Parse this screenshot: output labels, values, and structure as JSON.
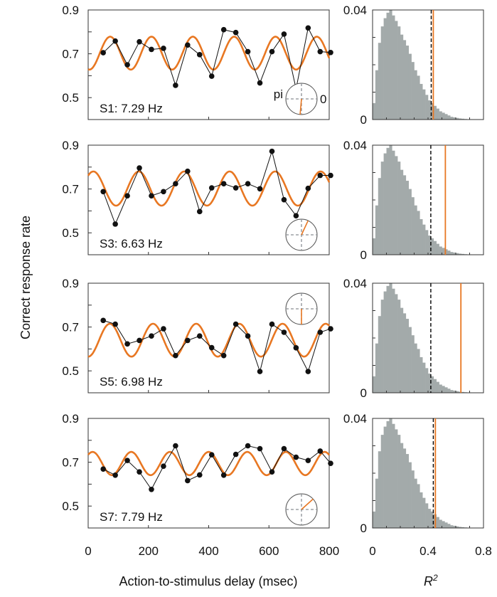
{
  "chart_data": [
    {
      "type": "line",
      "subject_label": "S1: 7.29 Hz",
      "freq_hz": 7.29,
      "x": [
        50,
        90,
        130,
        170,
        210,
        250,
        290,
        330,
        370,
        410,
        450,
        490,
        530,
        570,
        610,
        650,
        690,
        730,
        770,
        810
      ],
      "values": [
        0.705,
        0.758,
        0.65,
        0.755,
        0.72,
        0.725,
        0.556,
        0.74,
        0.696,
        0.598,
        0.81,
        0.797,
        0.71,
        0.567,
        0.71,
        0.79,
        0.54,
        0.818,
        0.71,
        0.706
      ],
      "fit": {
        "mean": 0.703,
        "amplitude": 0.075,
        "peak_ms": 73
      },
      "phase_deg": -95,
      "phase_labels": [
        "pi",
        "0"
      ],
      "r2_observed": 0.438,
      "r2_threshold": 0.423
    },
    {
      "type": "line",
      "subject_label": "S3: 6.63 Hz",
      "freq_hz": 6.63,
      "x": [
        50,
        90,
        130,
        170,
        210,
        250,
        290,
        330,
        370,
        410,
        450,
        490,
        530,
        570,
        610,
        650,
        690,
        730,
        770,
        810
      ],
      "values": [
        0.688,
        0.54,
        0.669,
        0.796,
        0.669,
        0.688,
        0.724,
        0.781,
        0.597,
        0.705,
        0.724,
        0.705,
        0.724,
        0.701,
        0.872,
        0.651,
        0.578,
        0.703,
        0.762,
        0.762
      ],
      "fit": {
        "mean": 0.702,
        "amplitude": 0.078,
        "peak_ms": 168
      },
      "phase_deg": 65,
      "phase_labels": [],
      "r2_observed": 0.525,
      "r2_threshold": 0.42
    },
    {
      "type": "line",
      "subject_label": "S5: 6.98 Hz",
      "freq_hz": 6.98,
      "x": [
        50,
        90,
        130,
        170,
        210,
        250,
        290,
        330,
        370,
        410,
        450,
        490,
        530,
        570,
        610,
        650,
        690,
        730,
        770,
        810
      ],
      "values": [
        0.73,
        0.713,
        0.623,
        0.639,
        0.659,
        0.692,
        0.57,
        0.639,
        0.659,
        0.606,
        0.57,
        0.713,
        0.659,
        0.497,
        0.713,
        0.676,
        0.605,
        0.497,
        0.676,
        0.692
      ],
      "fit": {
        "mean": 0.64,
        "amplitude": 0.075,
        "peak_ms": 72
      },
      "phase_deg": -90,
      "phase_labels": [],
      "r2_observed": 0.637,
      "r2_threshold": 0.42
    },
    {
      "type": "line",
      "subject_label": "S7: 7.79 Hz",
      "freq_hz": 7.79,
      "x": [
        50,
        90,
        130,
        170,
        210,
        250,
        290,
        330,
        370,
        410,
        450,
        490,
        530,
        570,
        610,
        650,
        690,
        730,
        770,
        810
      ],
      "values": [
        0.669,
        0.641,
        0.708,
        0.656,
        0.576,
        0.682,
        0.775,
        0.616,
        0.642,
        0.734,
        0.641,
        0.736,
        0.775,
        0.762,
        0.656,
        0.762,
        0.723,
        0.708,
        0.751,
        0.695
      ],
      "fit": {
        "mean": 0.694,
        "amplitude": 0.053,
        "peak_ms": 143
      },
      "phase_deg": 42,
      "phase_labels": [],
      "r2_observed": 0.453,
      "r2_threshold": 0.438
    }
  ],
  "left_axes": {
    "xlim": [
      0,
      800
    ],
    "ylim": [
      0.4,
      0.9
    ],
    "xticks": [
      "0",
      "200",
      "400",
      "600",
      "800"
    ],
    "xtick_values": [
      0,
      200,
      400,
      600,
      800
    ],
    "yticks": [
      "0.9",
      "0.7",
      "0.5"
    ],
    "ytick_values": [
      0.9,
      0.7,
      0.5
    ],
    "yminor": [
      0.8,
      0.6
    ],
    "xlabel": "Action-to-stimulus delay (msec)",
    "ylabel": "Correct response rate"
  },
  "right_axes": {
    "type": "histogram",
    "xlim": [
      0,
      0.8
    ],
    "ylim": [
      0,
      0.04
    ],
    "xticks": [
      "0",
      "0.4",
      "0.8"
    ],
    "xtick_values": [
      0,
      0.4,
      0.8
    ],
    "yticks": [
      "0.04",
      "0"
    ],
    "ytick_values": [
      0.04,
      0
    ],
    "xlabel": "R",
    "xlabel_sup": "2",
    "bin_width": 0.02,
    "null_hist": [
      0.006,
      0.018,
      0.028,
      0.034,
      0.037,
      0.039,
      0.04,
      0.038,
      0.036,
      0.034,
      0.031,
      0.029,
      0.027,
      0.024,
      0.021,
      0.018,
      0.016,
      0.013,
      0.011,
      0.009,
      0.007,
      0.006,
      0.005,
      0.004,
      0.003,
      0.0025,
      0.002,
      0.0015,
      0.001,
      0.0008,
      0.0006,
      0.0004,
      0.0003,
      0.0002,
      0.0001,
      0.0001
    ]
  },
  "colors": {
    "fit": "#e87722",
    "data": "#111111",
    "hist": "#a3aaaa",
    "threshold": "#000000",
    "phase_axes": "#8a8f94"
  }
}
